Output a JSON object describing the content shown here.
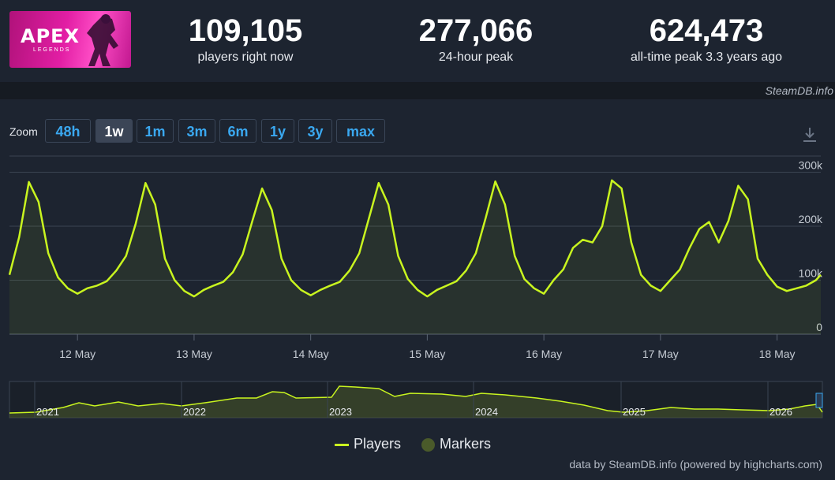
{
  "header": {
    "logo": {
      "title": "APEX",
      "subtitle": "LEGENDS"
    },
    "stats": [
      {
        "value": "109,105",
        "label": "players right now"
      },
      {
        "value": "277,066",
        "label": "24-hour peak"
      },
      {
        "value": "624,473",
        "label": "all-time peak 3.3 years ago"
      }
    ],
    "credit": "SteamDB.info"
  },
  "zoom": {
    "label": "Zoom",
    "buttons": [
      "48h",
      "1w",
      "1m",
      "3m",
      "6m",
      "1y",
      "3y",
      "max"
    ],
    "active": "1w"
  },
  "colors": {
    "background": "#1d2430",
    "line": "#c9f51f",
    "button_text": "#3aa8f0"
  },
  "chart_data": {
    "type": "line",
    "title": "",
    "xlabel": "",
    "ylabel": "",
    "ylim": [
      0,
      330000
    ],
    "xlim": [
      "2024-05-11 10:00",
      "2024-05-18 09:00"
    ],
    "y_ticks": [
      "0",
      "100k",
      "200k",
      "300k"
    ],
    "x_ticks": [
      "12 May",
      "13 May",
      "14 May",
      "15 May",
      "16 May",
      "17 May",
      "18 May"
    ],
    "grid": true,
    "legend": {
      "position": "bottom-center",
      "entries": [
        "Players",
        "Markers"
      ]
    },
    "series": [
      {
        "name": "Players",
        "x": [
          "2024-05-11 10:00",
          "2024-05-11 12:00",
          "2024-05-11 14:00",
          "2024-05-11 16:00",
          "2024-05-11 18:00",
          "2024-05-11 20:00",
          "2024-05-11 22:00",
          "2024-05-12 00:00",
          "2024-05-12 02:00",
          "2024-05-12 04:00",
          "2024-05-12 06:00",
          "2024-05-12 08:00",
          "2024-05-12 10:00",
          "2024-05-12 12:00",
          "2024-05-12 14:00",
          "2024-05-12 16:00",
          "2024-05-12 18:00",
          "2024-05-12 20:00",
          "2024-05-12 22:00",
          "2024-05-13 00:00",
          "2024-05-13 02:00",
          "2024-05-13 04:00",
          "2024-05-13 06:00",
          "2024-05-13 08:00",
          "2024-05-13 10:00",
          "2024-05-13 12:00",
          "2024-05-13 14:00",
          "2024-05-13 16:00",
          "2024-05-13 18:00",
          "2024-05-13 20:00",
          "2024-05-13 22:00",
          "2024-05-14 00:00",
          "2024-05-14 02:00",
          "2024-05-14 04:00",
          "2024-05-14 06:00",
          "2024-05-14 08:00",
          "2024-05-14 10:00",
          "2024-05-14 12:00",
          "2024-05-14 14:00",
          "2024-05-14 16:00",
          "2024-05-14 18:00",
          "2024-05-14 20:00",
          "2024-05-14 22:00",
          "2024-05-15 00:00",
          "2024-05-15 02:00",
          "2024-05-15 04:00",
          "2024-05-15 06:00",
          "2024-05-15 08:00",
          "2024-05-15 10:00",
          "2024-05-15 12:00",
          "2024-05-15 14:00",
          "2024-05-15 16:00",
          "2024-05-15 18:00",
          "2024-05-15 20:00",
          "2024-05-15 22:00",
          "2024-05-16 00:00",
          "2024-05-16 02:00",
          "2024-05-16 04:00",
          "2024-05-16 06:00",
          "2024-05-16 08:00",
          "2024-05-16 10:00",
          "2024-05-16 12:00",
          "2024-05-16 14:00",
          "2024-05-16 16:00",
          "2024-05-16 18:00",
          "2024-05-16 20:00",
          "2024-05-16 22:00",
          "2024-05-17 00:00",
          "2024-05-17 02:00",
          "2024-05-17 04:00",
          "2024-05-17 06:00",
          "2024-05-17 08:00",
          "2024-05-17 10:00",
          "2024-05-17 12:00",
          "2024-05-17 14:00",
          "2024-05-17 16:00",
          "2024-05-17 18:00",
          "2024-05-17 20:00",
          "2024-05-17 22:00",
          "2024-05-18 00:00",
          "2024-05-18 02:00",
          "2024-05-18 04:00",
          "2024-05-18 06:00",
          "2024-05-18 08:00",
          "2024-05-18 09:00"
        ],
        "values": [
          110000,
          180000,
          282000,
          245000,
          150000,
          105000,
          85000,
          75000,
          85000,
          90000,
          98000,
          118000,
          145000,
          205000,
          280000,
          240000,
          140000,
          100000,
          80000,
          70000,
          82000,
          90000,
          97000,
          115000,
          148000,
          210000,
          270000,
          230000,
          140000,
          100000,
          82000,
          72000,
          82000,
          90000,
          97000,
          118000,
          150000,
          215000,
          280000,
          240000,
          145000,
          102000,
          82000,
          70000,
          82000,
          90000,
          98000,
          118000,
          150000,
          215000,
          283000,
          240000,
          145000,
          102000,
          85000,
          75000,
          100000,
          120000,
          160000,
          175000,
          170000,
          200000,
          285000,
          270000,
          170000,
          110000,
          90000,
          80000,
          100000,
          120000,
          160000,
          195000,
          208000,
          170000,
          210000,
          275000,
          250000,
          140000,
          110000,
          88000,
          80000,
          85000,
          90000,
          100000,
          110000
        ]
      }
    ],
    "navigator": {
      "x_ticks": [
        "2021",
        "2022",
        "2023",
        "2024",
        "2025",
        "2026"
      ]
    }
  },
  "footer": {
    "credit": "data by SteamDB.info (powered by highcharts.com)"
  }
}
